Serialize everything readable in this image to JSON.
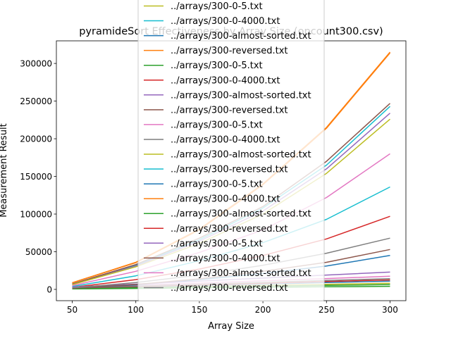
{
  "chart_data": {
    "type": "line",
    "title": "pyramideSort Effectiveness by Array Size (opcount300.csv)",
    "xlabel": "Array Size",
    "ylabel": "Measurement Result",
    "xlim": [
      37.5,
      312.5
    ],
    "ylim": [
      -15000,
      330000
    ],
    "xticks": [
      50,
      100,
      150,
      200,
      250,
      300
    ],
    "yticks": [
      0,
      50000,
      100000,
      150000,
      200000,
      250000,
      300000
    ],
    "x": [
      50,
      100,
      150,
      200,
      250,
      300
    ],
    "grid": false,
    "legend_placement": "center",
    "series": [
      {
        "name": "../arrays/300-0-5.txt",
        "color": "#bcbd22",
        "values": [
          1200,
          2600,
          4000,
          5400,
          6800,
          8200
        ]
      },
      {
        "name": "../arrays/300-0-4000.txt",
        "color": "#17becf",
        "values": [
          7000,
          32000,
          66000,
          108000,
          165000,
          243000
        ]
      },
      {
        "name": "../arrays/300-almost-sorted.txt",
        "color": "#1f77b4",
        "values": [
          1500,
          3300,
          5200,
          7100,
          9000,
          11000
        ]
      },
      {
        "name": "../arrays/300-reversed.txt",
        "color": "#ff7f0e",
        "values": [
          8800,
          36000,
          80000,
          140000,
          215000,
          315000
        ]
      },
      {
        "name": "../arrays/300-0-5.txt",
        "color": "#2ca02c",
        "values": [
          900,
          2000,
          3100,
          4200,
          5300,
          6400
        ]
      },
      {
        "name": "../arrays/300-0-4000.txt",
        "color": "#d62728",
        "values": [
          1700,
          3800,
          6000,
          8200,
          10400,
          12600
        ]
      },
      {
        "name": "../arrays/300-almost-sorted.txt",
        "color": "#9467bd",
        "values": [
          6600,
          31000,
          64000,
          104000,
          160000,
          234000
        ]
      },
      {
        "name": "../arrays/300-reversed.txt",
        "color": "#8c564b",
        "values": [
          7200,
          33000,
          68000,
          110000,
          170000,
          247000
        ]
      },
      {
        "name": "../arrays/300-0-5.txt",
        "color": "#e377c2",
        "values": [
          2400,
          5400,
          8400,
          11400,
          14400,
          17400
        ]
      },
      {
        "name": "../arrays/300-0-4000.txt",
        "color": "#7f7f7f",
        "values": [
          2000,
          4400,
          6900,
          9300,
          11800,
          14300
        ]
      },
      {
        "name": "../arrays/300-almost-sorted.txt",
        "color": "#bcbd22",
        "values": [
          6300,
          30000,
          61000,
          100000,
          154000,
          226000
        ]
      },
      {
        "name": "../arrays/300-reversed.txt",
        "color": "#17becf",
        "values": [
          3800,
          18000,
          38000,
          62000,
          93000,
          136000
        ]
      },
      {
        "name": "../arrays/300-0-5.txt",
        "color": "#1f77b4",
        "values": [
          1300,
          6000,
          13000,
          21000,
          31000,
          45000
        ]
      },
      {
        "name": "../arrays/300-0-4000.txt",
        "color": "#ff7f0e",
        "values": [
          8700,
          35500,
          79000,
          139000,
          214000,
          314000
        ]
      },
      {
        "name": "../arrays/300-almost-sorted.txt",
        "color": "#2ca02c",
        "values": [
          600,
          1300,
          2000,
          2700,
          3400,
          4100
        ]
      },
      {
        "name": "../arrays/300-reversed.txt",
        "color": "#d62728",
        "values": [
          2700,
          13000,
          27000,
          45000,
          67000,
          97000
        ]
      },
      {
        "name": "../arrays/300-0-5.txt",
        "color": "#9467bd",
        "values": [
          3000,
          7000,
          11000,
          15000,
          19000,
          23000
        ]
      },
      {
        "name": "../arrays/300-0-4000.txt",
        "color": "#8c564b",
        "values": [
          1400,
          6500,
          14000,
          24000,
          36000,
          53000
        ]
      },
      {
        "name": "../arrays/300-almost-sorted.txt",
        "color": "#e377c2",
        "values": [
          5000,
          24000,
          49000,
          79000,
          122000,
          180000
        ]
      },
      {
        "name": "../arrays/300-reversed.txt",
        "color": "#7f7f7f",
        "values": [
          1900,
          9000,
          19000,
          32000,
          48000,
          68000
        ]
      }
    ]
  }
}
